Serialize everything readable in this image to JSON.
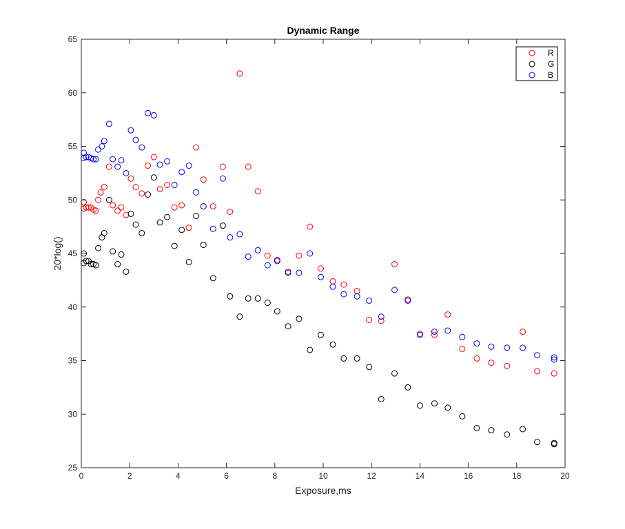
{
  "chart_data": {
    "type": "scatter",
    "title": "Dynamic Range",
    "xlabel": "Exposure,ms",
    "ylabel": "20*log()",
    "xlim": [
      0,
      20
    ],
    "ylim": [
      25,
      65
    ],
    "xticks": [
      0,
      2,
      4,
      6,
      8,
      10,
      12,
      14,
      16,
      18,
      20
    ],
    "yticks": [
      25,
      30,
      35,
      40,
      45,
      50,
      55,
      60,
      65
    ],
    "grid": false,
    "legend_position": "top-right",
    "marker": "open-circle",
    "series": [
      {
        "name": "R",
        "color": "#ff0000",
        "points": [
          [
            0.1,
            49.8
          ],
          [
            0.1,
            49.2
          ],
          [
            0.2,
            49.3
          ],
          [
            0.3,
            49.3
          ],
          [
            0.4,
            49.3
          ],
          [
            0.5,
            49.1
          ],
          [
            0.6,
            49.0
          ],
          [
            0.7,
            50.0
          ],
          [
            0.8,
            50.7
          ],
          [
            0.95,
            51.2
          ],
          [
            1.15,
            53.1
          ],
          [
            1.3,
            49.5
          ],
          [
            1.5,
            49.0
          ],
          [
            1.65,
            49.3
          ],
          [
            1.85,
            48.6
          ],
          [
            2.05,
            52.0
          ],
          [
            2.25,
            51.2
          ],
          [
            2.5,
            50.6
          ],
          [
            2.75,
            53.2
          ],
          [
            3.0,
            54.0
          ],
          [
            3.25,
            51.0
          ],
          [
            3.55,
            51.4
          ],
          [
            3.85,
            49.3
          ],
          [
            4.15,
            49.5
          ],
          [
            4.45,
            47.4
          ],
          [
            4.75,
            54.9
          ],
          [
            5.05,
            51.9
          ],
          [
            5.45,
            49.4
          ],
          [
            5.85,
            53.1
          ],
          [
            6.15,
            48.9
          ],
          [
            6.55,
            61.8
          ],
          [
            6.9,
            53.1
          ],
          [
            7.3,
            50.8
          ],
          [
            7.7,
            44.8
          ],
          [
            8.1,
            44.4
          ],
          [
            8.55,
            43.3
          ],
          [
            9.0,
            44.8
          ],
          [
            9.45,
            47.5
          ],
          [
            9.9,
            43.6
          ],
          [
            10.4,
            42.4
          ],
          [
            10.85,
            42.1
          ],
          [
            11.4,
            41.5
          ],
          [
            11.9,
            38.8
          ],
          [
            12.4,
            38.7
          ],
          [
            12.95,
            44.0
          ],
          [
            13.5,
            40.7
          ],
          [
            14.0,
            37.5
          ],
          [
            14.6,
            37.4
          ],
          [
            15.15,
            39.3
          ],
          [
            15.75,
            36.1
          ],
          [
            16.35,
            35.2
          ],
          [
            16.95,
            34.8
          ],
          [
            17.6,
            34.5
          ],
          [
            18.25,
            37.7
          ],
          [
            18.85,
            34.0
          ],
          [
            19.55,
            33.8
          ]
        ]
      },
      {
        "name": "G",
        "color": "#000000",
        "points": [
          [
            0.1,
            45.0
          ],
          [
            0.1,
            44.1
          ],
          [
            0.2,
            44.3
          ],
          [
            0.3,
            44.3
          ],
          [
            0.4,
            44.0
          ],
          [
            0.5,
            44.0
          ],
          [
            0.6,
            43.9
          ],
          [
            0.7,
            45.5
          ],
          [
            0.85,
            46.5
          ],
          [
            0.95,
            46.9
          ],
          [
            1.15,
            50.0
          ],
          [
            1.3,
            45.2
          ],
          [
            1.5,
            44.0
          ],
          [
            1.65,
            44.9
          ],
          [
            1.85,
            43.3
          ],
          [
            2.05,
            48.7
          ],
          [
            2.25,
            47.7
          ],
          [
            2.5,
            46.9
          ],
          [
            2.75,
            50.5
          ],
          [
            3.0,
            52.1
          ],
          [
            3.25,
            47.9
          ],
          [
            3.55,
            48.4
          ],
          [
            3.85,
            45.7
          ],
          [
            4.15,
            47.2
          ],
          [
            4.45,
            44.2
          ],
          [
            4.75,
            48.5
          ],
          [
            5.05,
            45.8
          ],
          [
            5.45,
            42.7
          ],
          [
            5.85,
            47.6
          ],
          [
            6.15,
            41.0
          ],
          [
            6.55,
            39.1
          ],
          [
            6.9,
            40.8
          ],
          [
            7.3,
            40.8
          ],
          [
            7.7,
            40.4
          ],
          [
            8.1,
            39.6
          ],
          [
            8.55,
            38.2
          ],
          [
            9.0,
            38.9
          ],
          [
            9.45,
            36.0
          ],
          [
            9.9,
            37.4
          ],
          [
            10.4,
            36.5
          ],
          [
            10.85,
            35.2
          ],
          [
            11.4,
            35.2
          ],
          [
            11.9,
            34.4
          ],
          [
            12.4,
            31.4
          ],
          [
            12.95,
            33.8
          ],
          [
            13.5,
            32.5
          ],
          [
            14.0,
            30.8
          ],
          [
            14.6,
            31.0
          ],
          [
            15.15,
            30.6
          ],
          [
            15.75,
            29.8
          ],
          [
            16.35,
            28.7
          ],
          [
            16.95,
            28.5
          ],
          [
            17.6,
            28.1
          ],
          [
            18.25,
            28.6
          ],
          [
            18.85,
            27.4
          ],
          [
            19.55,
            27.2
          ],
          [
            19.55,
            27.3
          ]
        ]
      },
      {
        "name": "B",
        "color": "#0000ff",
        "points": [
          [
            0.1,
            54.4
          ],
          [
            0.1,
            53.9
          ],
          [
            0.2,
            54.0
          ],
          [
            0.3,
            54.0
          ],
          [
            0.4,
            53.9
          ],
          [
            0.5,
            53.8
          ],
          [
            0.6,
            53.8
          ],
          [
            0.7,
            54.7
          ],
          [
            0.85,
            55.0
          ],
          [
            0.95,
            55.5
          ],
          [
            1.15,
            57.1
          ],
          [
            1.3,
            53.8
          ],
          [
            1.5,
            53.1
          ],
          [
            1.65,
            53.7
          ],
          [
            1.85,
            52.5
          ],
          [
            2.05,
            56.5
          ],
          [
            2.25,
            55.6
          ],
          [
            2.5,
            54.9
          ],
          [
            2.75,
            58.1
          ],
          [
            3.0,
            57.9
          ],
          [
            3.25,
            53.3
          ],
          [
            3.55,
            53.6
          ],
          [
            3.85,
            51.4
          ],
          [
            4.15,
            52.6
          ],
          [
            4.45,
            53.2
          ],
          [
            4.75,
            50.7
          ],
          [
            5.05,
            49.4
          ],
          [
            5.45,
            47.3
          ],
          [
            5.85,
            52.0
          ],
          [
            6.15,
            46.5
          ],
          [
            6.55,
            46.8
          ],
          [
            6.9,
            44.7
          ],
          [
            7.3,
            45.3
          ],
          [
            7.7,
            43.9
          ],
          [
            8.1,
            44.3
          ],
          [
            8.55,
            43.2
          ],
          [
            9.0,
            43.2
          ],
          [
            9.45,
            45.0
          ],
          [
            9.9,
            42.8
          ],
          [
            10.4,
            41.9
          ],
          [
            10.85,
            41.2
          ],
          [
            11.4,
            41.0
          ],
          [
            11.9,
            40.6
          ],
          [
            12.4,
            39.1
          ],
          [
            12.95,
            41.6
          ],
          [
            13.5,
            40.6
          ],
          [
            14.0,
            37.4
          ],
          [
            14.6,
            37.7
          ],
          [
            15.15,
            37.8
          ],
          [
            15.75,
            37.2
          ],
          [
            16.35,
            36.6
          ],
          [
            16.95,
            36.3
          ],
          [
            17.6,
            36.2
          ],
          [
            18.25,
            36.2
          ],
          [
            18.85,
            35.5
          ],
          [
            19.55,
            35.3
          ],
          [
            19.55,
            35.1
          ]
        ]
      }
    ]
  }
}
